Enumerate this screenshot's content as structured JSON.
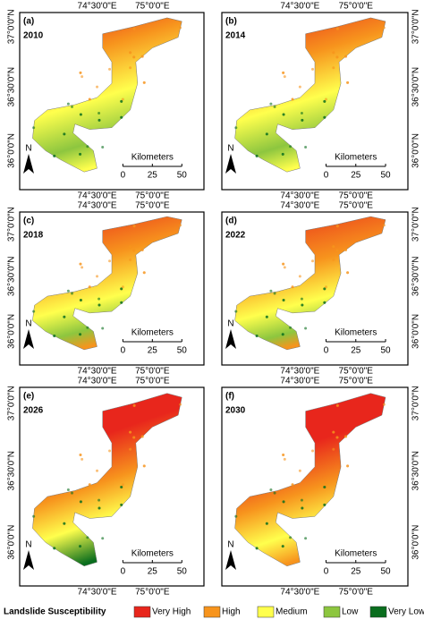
{
  "panels": [
    {
      "label": "(a)",
      "year": "2010",
      "x_labels": [
        "74°30'0\"E",
        "75°0'0\"E"
      ],
      "y_labels": [
        "37°0'0\"N",
        "36°30'0\"N",
        "36°0'0\"N"
      ],
      "scale_title": "Kilometers",
      "scale_ticks": [
        "0",
        "25",
        "50"
      ],
      "north": "N"
    },
    {
      "label": "(b)",
      "year": "2014",
      "x_labels": [
        "74°30'0\"E",
        "75°0'0\"E"
      ],
      "y_labels": [
        "37°0'0\"N",
        "36°30'0\"N",
        "36°0'0\"N"
      ],
      "scale_title": "Kilometers",
      "scale_ticks": [
        "0",
        "25",
        "50"
      ],
      "north": "N"
    },
    {
      "label": "(c)",
      "year": "2018",
      "x_labels": [
        "74°30'0\"E",
        "75°0'0\"E"
      ],
      "y_labels": [
        "37°0'0\"N",
        "36°30'0\"N",
        "36°0'0\"N"
      ],
      "scale_title": "Kilometers",
      "scale_ticks": [
        "0",
        "25",
        "50"
      ],
      "north": "N"
    },
    {
      "label": "(d)",
      "year": "2022",
      "x_labels": [
        "74°30'0\"E",
        "75°0'0\"E"
      ],
      "y_labels": [
        "37°0'0\"N",
        "36°30'0\"N",
        "36°0'0\"N"
      ],
      "scale_title": "Kilometers",
      "scale_ticks": [
        "0",
        "25",
        "50"
      ],
      "north": "N"
    },
    {
      "label": "(e)",
      "year": "2026",
      "x_labels": [
        "74°30'0\"E",
        "75°0'0\"E"
      ],
      "y_labels": [
        "37°0'0\"N",
        "36°30'0\"N",
        "36°0'0\"N"
      ],
      "scale_title": "Kilometers",
      "scale_ticks": [
        "0",
        "25",
        "50"
      ],
      "north": "N"
    },
    {
      "label": "(f)",
      "year": "2030",
      "x_labels": [
        "74°30'0\"E",
        "75°0'0\"E"
      ],
      "y_labels": [
        "37°0'0\"N",
        "36°30'0\"N",
        "36°0'0\"N"
      ],
      "scale_title": "Kilometers",
      "scale_ticks": [
        "0",
        "25",
        "50"
      ],
      "north": "N"
    }
  ],
  "legend": {
    "title": "Landslide Susceptibility",
    "items": [
      {
        "name": "Very High",
        "color": "#e8261c"
      },
      {
        "name": "High",
        "color": "#f7941d"
      },
      {
        "name": "Medium",
        "color": "#ffff4d"
      },
      {
        "name": "Low",
        "color": "#8dc63f"
      },
      {
        "name": "Very Low",
        "color": "#0a6e1e"
      }
    ]
  }
}
